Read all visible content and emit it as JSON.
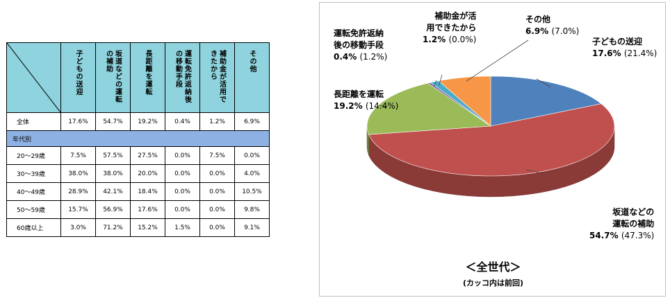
{
  "table": {
    "headers": [
      "子どもの送迎",
      "坂道などの運転の補助",
      "長距離を運転",
      "運転免許返納後の移動手段",
      "補助金が活用できたから",
      "その他"
    ],
    "overall": {
      "label": "全体",
      "values": [
        "17.6%",
        "54.7%",
        "19.2%",
        "0.4%",
        "1.2%",
        "6.9%"
      ]
    },
    "section_label": "年代別",
    "rows": [
      {
        "label": "20～29歳",
        "values": [
          "7.5%",
          "57.5%",
          "27.5%",
          "0.0%",
          "7.5%",
          "0.0%"
        ]
      },
      {
        "label": "30～39歳",
        "values": [
          "38.0%",
          "38.0%",
          "20.0%",
          "0.0%",
          "0.0%",
          "4.0%"
        ]
      },
      {
        "label": "40～49歳",
        "values": [
          "28.9%",
          "42.1%",
          "18.4%",
          "0.0%",
          "0.0%",
          "10.5%"
        ]
      },
      {
        "label": "50～59歳",
        "values": [
          "15.7%",
          "56.9%",
          "17.6%",
          "0.0%",
          "0.0%",
          "9.8%"
        ]
      },
      {
        "label": "60歳以上",
        "values": [
          "3.0%",
          "71.2%",
          "15.2%",
          "1.5%",
          "0.0%",
          "9.1%"
        ]
      }
    ],
    "header_color": "#8ed3dd",
    "section_color": "#8eb1e3"
  },
  "chart_data": {
    "type": "pie",
    "title": "＜全世代＞",
    "subtitle": "(カッコ内は前回)",
    "slices": [
      {
        "label": "子どもの送迎",
        "value": 17.6,
        "value_text": "17.6%",
        "previous_text": "(21.4%)",
        "color": "#4f81bd"
      },
      {
        "label": "坂道などの運転の補助",
        "value": 54.7,
        "value_text": "54.7%",
        "previous_text": "(47.3%)",
        "color": "#c0504d"
      },
      {
        "label": "長距離を運転",
        "value": 19.2,
        "value_text": "19.2%",
        "previous_text": "(14.4%)",
        "color": "#9bbb59"
      },
      {
        "label": "運転免許返納後の移動手段",
        "value": 0.4,
        "value_text": "0.4%",
        "previous_text": "(1.2%)",
        "color": "#8064a2"
      },
      {
        "label": "補助金が活用できたから",
        "value": 1.2,
        "value_text": "1.2%",
        "previous_text": "(0.0%)",
        "color": "#4bacc6"
      },
      {
        "label": "その他",
        "value": 6.9,
        "value_text": "6.9%",
        "previous_text": "(7.0%)",
        "color": "#f79646"
      }
    ],
    "label_lines": [
      [
        "子どもの送迎"
      ],
      [
        "坂道などの",
        "運転の補助"
      ],
      [
        "長距離を運転"
      ],
      [
        "運転免許返納",
        "後の移動手段"
      ],
      [
        "補助金が活",
        "用できたから"
      ],
      [
        "その他"
      ]
    ]
  }
}
